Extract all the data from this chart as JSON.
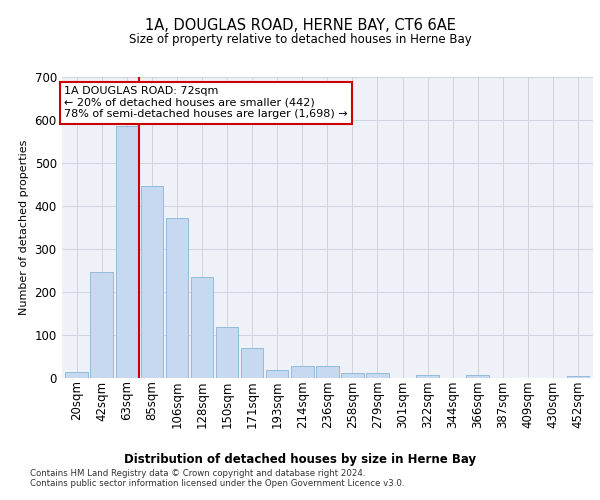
{
  "title": "1A, DOUGLAS ROAD, HERNE BAY, CT6 6AE",
  "subtitle": "Size of property relative to detached houses in Herne Bay",
  "xlabel": "Distribution of detached houses by size in Herne Bay",
  "ylabel": "Number of detached properties",
  "bar_color": "#c6d9f0",
  "bar_edge_color": "#8ab4d8",
  "grid_color": "#cdd5e0",
  "background_color": "#eef2f8",
  "categories": [
    "20sqm",
    "42sqm",
    "63sqm",
    "85sqm",
    "106sqm",
    "128sqm",
    "150sqm",
    "171sqm",
    "193sqm",
    "214sqm",
    "236sqm",
    "258sqm",
    "279sqm",
    "301sqm",
    "322sqm",
    "344sqm",
    "366sqm",
    "387sqm",
    "409sqm",
    "430sqm",
    "452sqm"
  ],
  "values": [
    14,
    247,
    585,
    447,
    372,
    235,
    118,
    68,
    18,
    28,
    28,
    10,
    10,
    0,
    7,
    0,
    7,
    0,
    0,
    0,
    5
  ],
  "ylim": [
    0,
    700
  ],
  "yticks": [
    0,
    100,
    200,
    300,
    400,
    500,
    600,
    700
  ],
  "property_bin_index": 2,
  "annotation_text": "1A DOUGLAS ROAD: 72sqm\n← 20% of detached houses are smaller (442)\n78% of semi-detached houses are larger (1,698) →",
  "annotation_box_color": "#ffffff",
  "annotation_border_color": "#cc0000",
  "red_line_color": "#cc0000",
  "footnote1": "Contains HM Land Registry data © Crown copyright and database right 2024.",
  "footnote2": "Contains public sector information licensed under the Open Government Licence v3.0."
}
